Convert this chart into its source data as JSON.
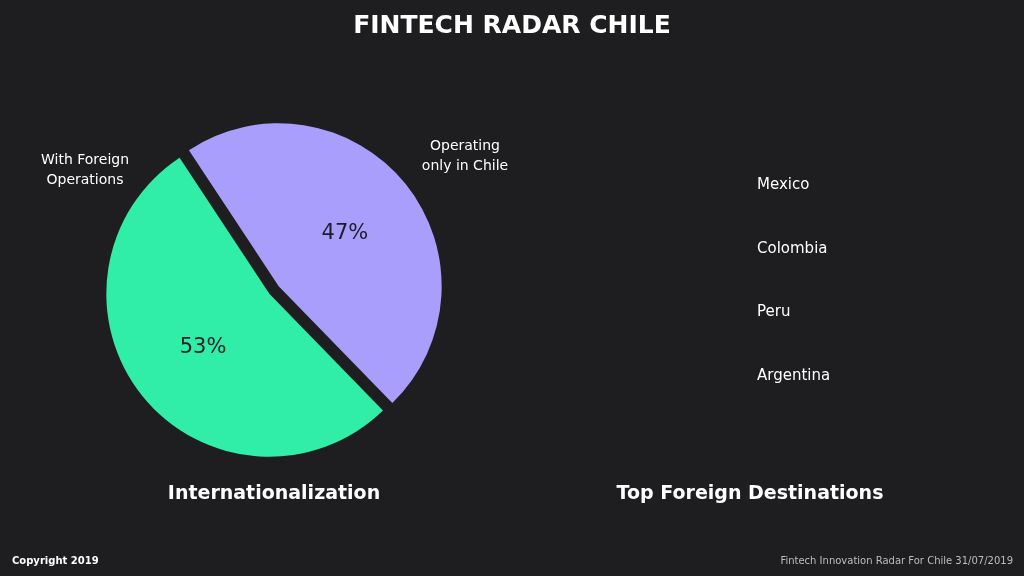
{
  "chart_data": [
    {
      "type": "pie",
      "title": "FINTECH RADAR CHILE",
      "subtitle": "Internationalization",
      "categories": [
        "With Foreign Operations",
        "Operating only in Chile"
      ],
      "values": [
        53,
        47
      ],
      "colors": [
        "#30eda8",
        "#aa9efc"
      ],
      "value_labels": [
        "53%",
        "47%"
      ],
      "annotations": [
        "Copyright 2019"
      ]
    },
    {
      "type": "other",
      "title": "Top Foreign Destinations",
      "categories": [
        "Mexico",
        "Colombia",
        "Peru",
        "Argentina"
      ],
      "annotations": [
        "Fintech Innovation Radar For Chile 31/07/2019"
      ]
    }
  ]
}
